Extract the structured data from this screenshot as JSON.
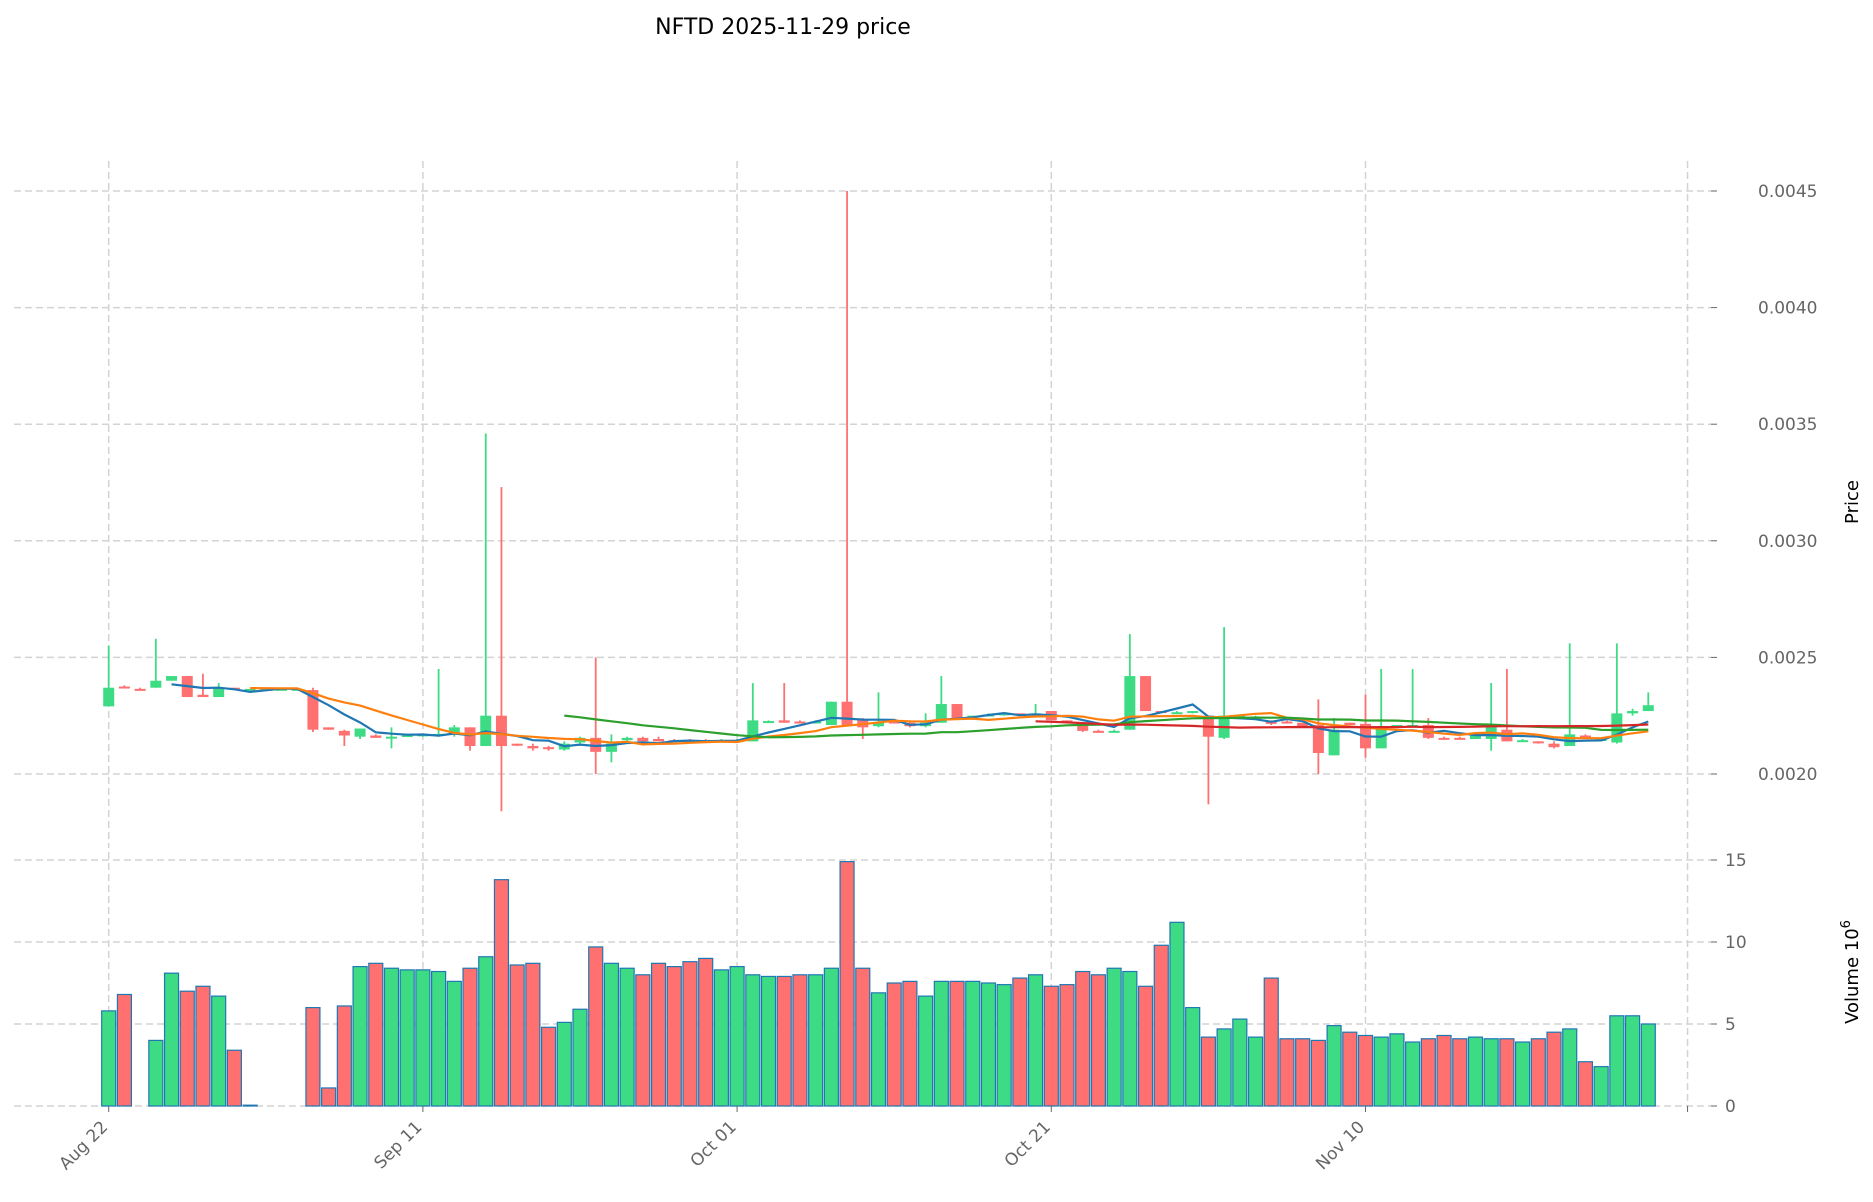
{
  "chart_data": {
    "type": "candlestick",
    "title": "NFTD  2025-11-29  price",
    "price_ylabel": "Price",
    "volume_ylabel": "Volume  10^6",
    "volume_ylabel_base": "Volume  10",
    "volume_ylabel_exp": "6",
    "price_ylim": [
      0.00187,
      0.00463
    ],
    "volume_ylim": [
      0,
      15.5
    ],
    "price_ticks": [
      "0.0020",
      "0.0025",
      "0.0030",
      "0.0035",
      "0.0040",
      "0.0045"
    ],
    "volume_ticks": [
      "0",
      "5",
      "10",
      "15"
    ],
    "x_ticks": [
      "Aug 22",
      "Sep 11",
      "Oct 01",
      "Oct 21",
      "Nov 10"
    ],
    "x_tick_day_index": [
      0,
      20,
      40,
      60,
      80
    ],
    "start_date": "2025-08-22",
    "ma_windows": [
      5,
      10,
      30,
      60
    ],
    "colors": {
      "up": "#3ddc84",
      "down": "#ff7070",
      "ma5": "#1f77b4",
      "ma10": "#ff7f0e",
      "ma30": "#2ca02c",
      "ma60": "#d62728",
      "volume_edge": "#1f77b4"
    },
    "candles": [
      [
        2.29,
        2.55,
        2.29,
        2.37,
        5.8
      ],
      [
        2.375,
        2.38,
        2.37,
        2.37,
        6.8
      ],
      [
        2.365,
        2.37,
        2.36,
        2.364,
        0
      ],
      [
        2.37,
        2.58,
        2.37,
        2.4,
        4.0
      ],
      [
        2.4,
        2.42,
        2.4,
        2.42,
        8.1
      ],
      [
        2.42,
        2.42,
        2.33,
        2.33,
        7.0
      ],
      [
        2.34,
        2.43,
        2.33,
        2.33,
        7.3
      ],
      [
        2.33,
        2.39,
        2.33,
        2.37,
        6.7
      ],
      [
        2.37,
        2.37,
        2.365,
        2.365,
        3.4
      ],
      [
        2.365,
        2.365,
        2.365,
        2.365,
        0.05
      ],
      [
        2.365,
        2.365,
        2.365,
        2.365,
        0
      ],
      [
        2.365,
        2.365,
        2.365,
        2.365,
        0
      ],
      [
        2.365,
        2.365,
        2.365,
        2.365,
        0
      ],
      [
        2.36,
        2.37,
        2.18,
        2.19,
        6.0
      ],
      [
        2.2,
        2.2,
        2.19,
        2.19,
        1.1
      ],
      [
        2.185,
        2.19,
        2.12,
        2.165,
        6.1
      ],
      [
        2.16,
        2.195,
        2.15,
        2.195,
        8.5
      ],
      [
        2.165,
        2.17,
        2.155,
        2.155,
        8.7
      ],
      [
        2.155,
        2.2,
        2.11,
        2.16,
        8.4
      ],
      [
        2.165,
        2.17,
        2.16,
        2.167,
        8.3
      ],
      [
        2.167,
        2.17,
        2.16,
        2.17,
        8.3
      ],
      [
        2.17,
        2.45,
        2.16,
        2.172,
        8.2
      ],
      [
        2.17,
        2.21,
        2.16,
        2.2,
        7.6
      ],
      [
        2.2,
        2.2,
        2.1,
        2.12,
        8.4
      ],
      [
        2.12,
        3.46,
        2.12,
        2.25,
        9.1
      ],
      [
        2.25,
        3.23,
        1.84,
        2.12,
        13.8
      ],
      [
        2.13,
        2.13,
        2.12,
        2.125,
        8.6
      ],
      [
        2.12,
        2.13,
        2.1,
        2.11,
        8.7
      ],
      [
        2.115,
        2.12,
        2.1,
        2.11,
        4.8
      ],
      [
        2.105,
        2.14,
        2.1,
        2.13,
        5.1
      ],
      [
        2.135,
        2.16,
        2.13,
        2.155,
        5.9
      ],
      [
        2.155,
        2.5,
        2.0,
        2.095,
        9.7
      ],
      [
        2.095,
        2.17,
        2.05,
        2.13,
        8.7
      ],
      [
        2.145,
        2.16,
        2.14,
        2.155,
        8.4
      ],
      [
        2.155,
        2.16,
        2.14,
        2.14,
        8.0
      ],
      [
        2.15,
        2.16,
        2.14,
        2.14,
        8.7
      ],
      [
        2.145,
        2.15,
        2.14,
        2.14,
        8.5
      ],
      [
        2.145,
        2.15,
        2.14,
        2.142,
        8.8
      ],
      [
        2.145,
        2.15,
        2.14,
        2.142,
        9.0
      ],
      [
        2.14,
        2.15,
        2.14,
        2.145,
        8.3
      ],
      [
        2.14,
        2.15,
        2.14,
        2.145,
        8.5
      ],
      [
        2.14,
        2.39,
        2.14,
        2.23,
        8.0
      ],
      [
        2.225,
        2.23,
        2.22,
        2.227,
        7.9
      ],
      [
        2.23,
        2.39,
        2.22,
        2.22,
        7.9
      ],
      [
        2.225,
        2.23,
        2.22,
        2.222,
        8.0
      ],
      [
        2.22,
        2.23,
        2.22,
        2.225,
        8.0
      ],
      [
        2.21,
        2.31,
        2.21,
        2.31,
        8.4
      ],
      [
        2.31,
        4.5,
        2.21,
        2.21,
        14.9
      ],
      [
        2.23,
        2.24,
        2.15,
        2.2,
        8.4
      ],
      [
        2.205,
        2.35,
        2.2,
        2.22,
        6.9
      ],
      [
        2.225,
        2.23,
        2.22,
        2.22,
        7.5
      ],
      [
        2.22,
        2.23,
        2.2,
        2.205,
        7.6
      ],
      [
        2.205,
        2.26,
        2.2,
        2.22,
        6.7
      ],
      [
        2.22,
        2.42,
        2.22,
        2.3,
        7.6
      ],
      [
        2.3,
        2.3,
        2.24,
        2.24,
        7.6
      ],
      [
        2.245,
        2.25,
        2.24,
        2.25,
        7.6
      ],
      [
        2.25,
        2.26,
        2.25,
        2.255,
        7.5
      ],
      [
        2.255,
        2.26,
        2.25,
        2.26,
        7.4
      ],
      [
        2.26,
        2.26,
        2.25,
        2.255,
        7.8
      ],
      [
        2.255,
        2.3,
        2.25,
        2.26,
        8.0
      ],
      [
        2.27,
        2.27,
        2.23,
        2.23,
        7.3
      ],
      [
        2.23,
        2.23,
        2.22,
        2.225,
        7.4
      ],
      [
        2.22,
        2.22,
        2.18,
        2.185,
        8.2
      ],
      [
        2.185,
        2.19,
        2.18,
        2.182,
        8.0
      ],
      [
        2.18,
        2.19,
        2.18,
        2.185,
        8.4
      ],
      [
        2.19,
        2.6,
        2.19,
        2.42,
        8.2
      ],
      [
        2.42,
        2.42,
        2.27,
        2.27,
        7.3
      ],
      [
        2.27,
        2.27,
        2.26,
        2.265,
        9.8
      ],
      [
        2.26,
        2.27,
        2.26,
        2.265,
        11.2
      ],
      [
        2.265,
        2.27,
        2.26,
        2.27,
        6.0
      ],
      [
        2.25,
        2.25,
        1.87,
        2.16,
        4.2
      ],
      [
        2.155,
        2.63,
        2.15,
        2.25,
        4.7
      ],
      [
        2.245,
        2.25,
        2.24,
        2.25,
        5.3
      ],
      [
        2.24,
        2.25,
        2.23,
        2.245,
        4.2
      ],
      [
        2.225,
        2.23,
        2.21,
        2.215,
        7.8
      ],
      [
        2.225,
        2.23,
        2.22,
        2.22,
        4.1
      ],
      [
        2.22,
        2.22,
        2.2,
        2.205,
        4.1
      ],
      [
        2.21,
        2.32,
        2.0,
        2.09,
        4.0
      ],
      [
        2.08,
        2.24,
        2.08,
        2.19,
        4.9
      ],
      [
        2.22,
        2.22,
        2.21,
        2.21,
        4.5
      ],
      [
        2.215,
        2.34,
        2.07,
        2.11,
        4.3
      ],
      [
        2.11,
        2.45,
        2.11,
        2.2,
        4.2
      ],
      [
        2.2,
        2.21,
        2.2,
        2.21,
        4.4
      ],
      [
        2.2,
        2.45,
        2.2,
        2.21,
        3.9
      ],
      [
        2.21,
        2.24,
        2.15,
        2.155,
        4.1
      ],
      [
        2.155,
        2.16,
        2.15,
        2.15,
        4.3
      ],
      [
        2.155,
        2.16,
        2.15,
        2.15,
        4.1
      ],
      [
        2.15,
        2.17,
        2.15,
        2.17,
        4.2
      ],
      [
        2.15,
        2.39,
        2.1,
        2.21,
        4.1
      ],
      [
        2.19,
        2.45,
        2.14,
        2.14,
        4.1
      ],
      [
        2.14,
        2.15,
        2.14,
        2.145,
        3.9
      ],
      [
        2.14,
        2.14,
        2.13,
        2.135,
        4.1
      ],
      [
        2.13,
        2.14,
        2.11,
        2.115,
        4.5
      ],
      [
        2.12,
        2.56,
        2.12,
        2.17,
        4.7
      ],
      [
        2.165,
        2.17,
        2.15,
        2.15,
        2.7
      ],
      [
        2.145,
        2.15,
        2.14,
        2.15,
        2.4
      ],
      [
        2.135,
        2.56,
        2.13,
        2.26,
        5.5
      ],
      [
        2.26,
        2.28,
        2.25,
        2.27,
        5.5
      ],
      [
        2.27,
        2.35,
        2.27,
        2.295,
        5.0
      ]
    ],
    "candle_fields": [
      "open_e-3",
      "high_e-3",
      "low_e-3",
      "close_e-3",
      "volume_e6"
    ]
  }
}
